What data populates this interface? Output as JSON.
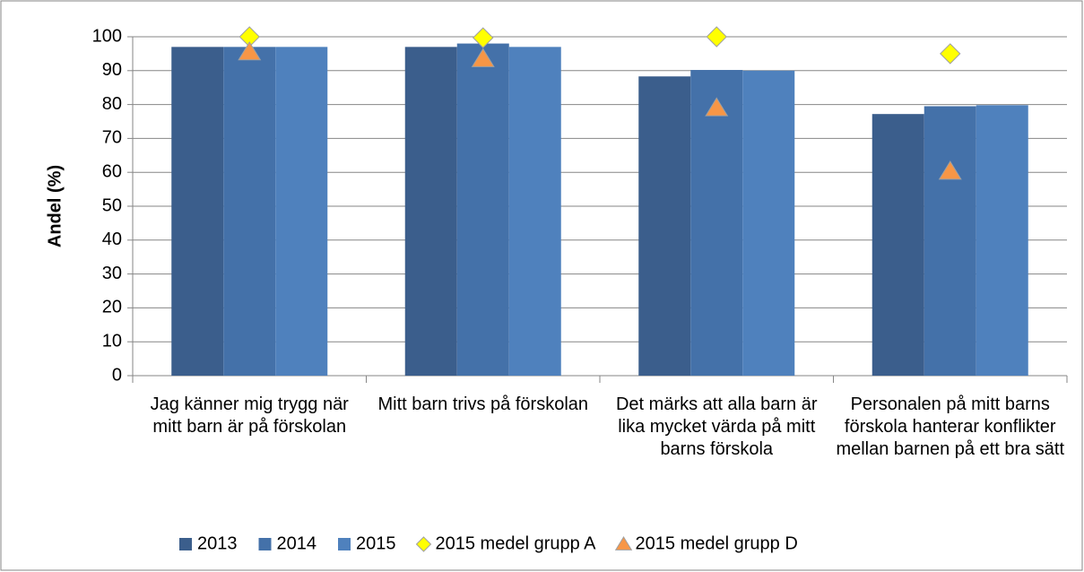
{
  "chart_data": {
    "type": "bar",
    "ylabel": "Andel (%)",
    "categories": [
      "Jag känner mig trygg när mitt barn är på förskolan",
      "Mitt barn trivs på förskolan",
      "Det märks att alla barn är lika mycket värda på mitt barns förskola",
      "Personalen på mitt barns förskola hanterar konflikter mellan barnen på ett bra sätt"
    ],
    "series": [
      {
        "name": "2013",
        "type": "bar",
        "color": "#3b5e8c",
        "values": [
          97,
          97,
          88.3,
          77.2
        ]
      },
      {
        "name": "2014",
        "type": "bar",
        "color": "#4471a9",
        "values": [
          97,
          98,
          90.2,
          79.5
        ]
      },
      {
        "name": "2015",
        "type": "bar",
        "color": "#4f81bd",
        "values": [
          97,
          97,
          90,
          79.8
        ]
      },
      {
        "name": "2015 medel grupp A",
        "type": "marker",
        "marker": "diamond",
        "color": "#ffff00",
        "values": [
          100,
          99.7,
          100,
          95
        ]
      },
      {
        "name": "2015 medel grupp D",
        "type": "marker",
        "marker": "triangle",
        "color": "#f79646",
        "values": [
          95.5,
          93.5,
          79,
          60.3
        ]
      }
    ],
    "ylim": [
      0,
      100
    ],
    "yticks": [
      0,
      10,
      20,
      30,
      40,
      50,
      60,
      70,
      80,
      90,
      100
    ],
    "grid": true,
    "legend": "bottom"
  }
}
